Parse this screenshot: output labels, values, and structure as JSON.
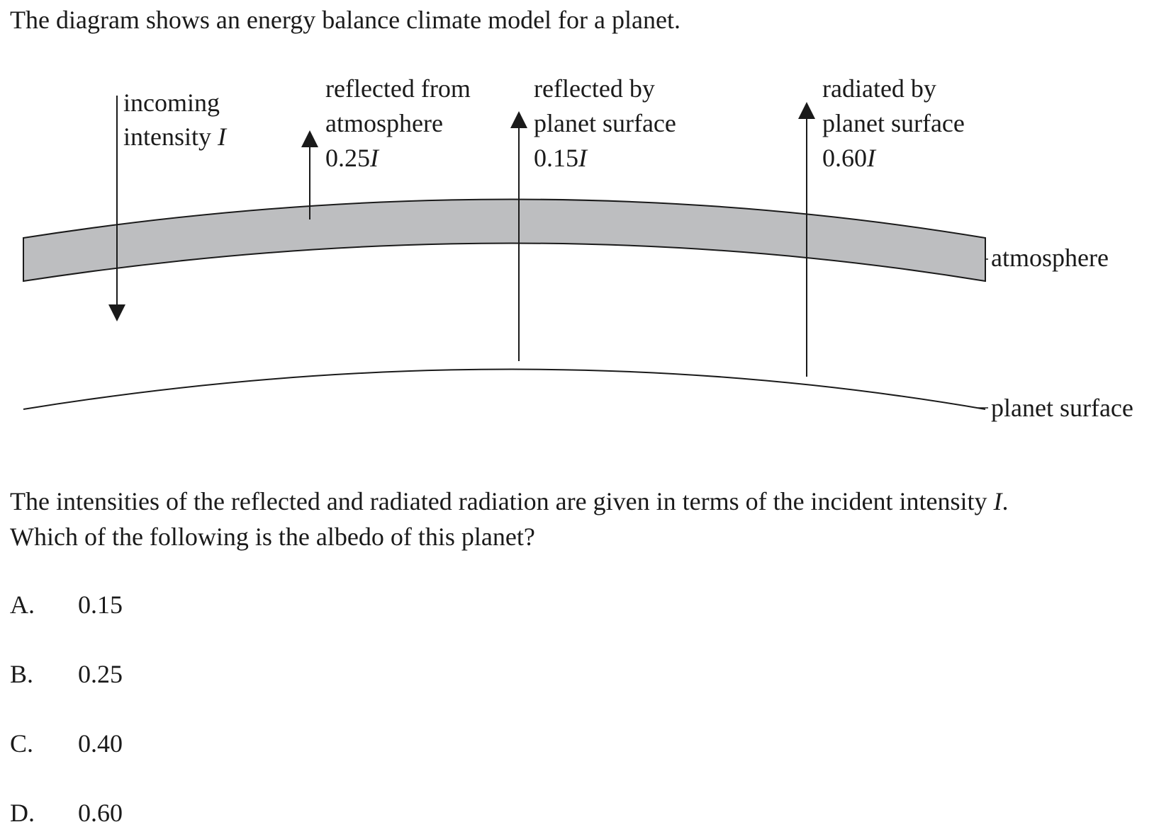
{
  "intro": "The diagram shows an energy balance climate model for a planet.",
  "diagram": {
    "incoming": {
      "line1": "incoming",
      "line2": "intensity ",
      "symbol": "I"
    },
    "reflected_atmosphere": {
      "line1": "reflected from",
      "line2": "atmosphere",
      "value": "0.25",
      "symbol": "I"
    },
    "reflected_surface": {
      "line1": "reflected by",
      "line2": "planet surface",
      "value": "0.15",
      "symbol": "I"
    },
    "radiated_surface": {
      "line1": "radiated by",
      "line2": "planet surface",
      "value": "0.60",
      "symbol": "I"
    },
    "atmosphere_label": "atmosphere",
    "surface_label": "planet surface",
    "colors": {
      "atmosphere_fill": "#bdbec0",
      "ink": "#1a1a1a"
    }
  },
  "question": {
    "line1": "The intensities of the reflected and radiated radiation are given in terms of the incident intensity ",
    "line1_symbol": "I",
    "line1_end": ".",
    "line2": "Which of the following is the albedo of this planet?"
  },
  "options": [
    {
      "letter": "A.",
      "value": "0.15"
    },
    {
      "letter": "B.",
      "value": "0.25"
    },
    {
      "letter": "C.",
      "value": "0.40"
    },
    {
      "letter": "D.",
      "value": "0.60"
    }
  ]
}
